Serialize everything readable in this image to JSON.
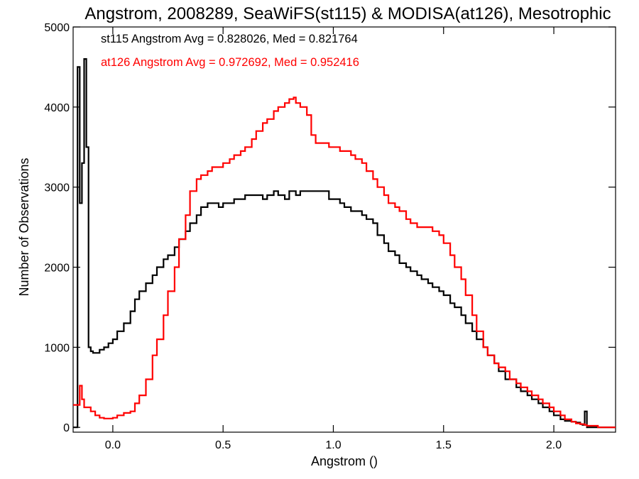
{
  "chart_data": {
    "type": "line",
    "title": "Angstrom, 2008289, SeaWiFS(st115) & MODISA(at126), Mesotrophic",
    "xlabel": "Angstrom ()",
    "ylabel": "Number of Observations",
    "xlim": [
      -0.18,
      2.28
    ],
    "ylim": [
      -60,
      5000
    ],
    "x_ticks": [
      0.0,
      0.5,
      1.0,
      1.5,
      2.0
    ],
    "x_tick_labels": [
      "0.0",
      "0.5",
      "1.0",
      "1.5",
      "2.0"
    ],
    "y_ticks": [
      0,
      1000,
      2000,
      3000,
      4000,
      5000
    ],
    "y_tick_labels": [
      "0",
      "1000",
      "2000",
      "3000",
      "4000",
      "5000"
    ],
    "grid": false,
    "step_plot": true,
    "series": [
      {
        "name": "st115",
        "color": "#000000",
        "x": [
          -0.18,
          -0.16,
          -0.15,
          -0.14,
          -0.13,
          -0.12,
          -0.11,
          -0.1,
          -0.09,
          -0.06,
          -0.04,
          -0.02,
          0.0,
          0.02,
          0.05,
          0.08,
          0.1,
          0.12,
          0.15,
          0.18,
          0.2,
          0.23,
          0.25,
          0.28,
          0.3,
          0.33,
          0.35,
          0.38,
          0.4,
          0.43,
          0.45,
          0.48,
          0.5,
          0.53,
          0.55,
          0.58,
          0.6,
          0.63,
          0.65,
          0.68,
          0.7,
          0.73,
          0.75,
          0.78,
          0.8,
          0.83,
          0.85,
          0.88,
          0.9,
          0.92,
          0.95,
          0.98,
          1.0,
          1.03,
          1.05,
          1.08,
          1.1,
          1.13,
          1.15,
          1.18,
          1.2,
          1.23,
          1.25,
          1.28,
          1.3,
          1.33,
          1.35,
          1.38,
          1.4,
          1.43,
          1.45,
          1.48,
          1.5,
          1.53,
          1.55,
          1.58,
          1.6,
          1.63,
          1.65,
          1.68,
          1.7,
          1.73,
          1.75,
          1.78,
          1.8,
          1.83,
          1.85,
          1.88,
          1.9,
          1.93,
          1.95,
          1.98,
          2.0,
          2.03,
          2.05,
          2.08,
          2.1,
          2.12,
          2.13,
          2.14,
          2.15,
          2.16,
          2.2,
          2.28
        ],
        "y": [
          0,
          4500,
          2800,
          3300,
          4600,
          3500,
          1000,
          950,
          930,
          970,
          1000,
          1050,
          1100,
          1200,
          1300,
          1450,
          1600,
          1700,
          1800,
          1900,
          2000,
          2100,
          2150,
          2250,
          2350,
          2450,
          2550,
          2650,
          2750,
          2800,
          2800,
          2750,
          2800,
          2800,
          2850,
          2850,
          2900,
          2900,
          2900,
          2850,
          2900,
          2950,
          2900,
          2850,
          2950,
          2900,
          2950,
          2950,
          2950,
          2950,
          2950,
          2850,
          2850,
          2800,
          2750,
          2700,
          2700,
          2650,
          2600,
          2550,
          2400,
          2300,
          2200,
          2150,
          2050,
          2000,
          1950,
          1900,
          1850,
          1800,
          1750,
          1700,
          1650,
          1550,
          1500,
          1400,
          1300,
          1200,
          1100,
          1000,
          900,
          800,
          700,
          600,
          600,
          500,
          450,
          400,
          350,
          300,
          250,
          200,
          150,
          100,
          80,
          70,
          60,
          40,
          30,
          200,
          0,
          0,
          0,
          0
        ],
        "legend_text": "st115 Angstrom Avg = 0.828026, Med = 0.821764"
      },
      {
        "name": "at126",
        "color": "#ff0000",
        "x": [
          -0.18,
          -0.15,
          -0.14,
          -0.13,
          -0.1,
          -0.08,
          -0.06,
          -0.04,
          -0.02,
          0.0,
          0.02,
          0.05,
          0.08,
          0.1,
          0.12,
          0.15,
          0.18,
          0.2,
          0.23,
          0.25,
          0.28,
          0.3,
          0.33,
          0.35,
          0.38,
          0.4,
          0.43,
          0.45,
          0.48,
          0.5,
          0.53,
          0.55,
          0.58,
          0.6,
          0.63,
          0.65,
          0.68,
          0.7,
          0.73,
          0.75,
          0.78,
          0.8,
          0.82,
          0.83,
          0.85,
          0.88,
          0.9,
          0.92,
          0.95,
          0.98,
          1.0,
          1.03,
          1.05,
          1.08,
          1.1,
          1.13,
          1.15,
          1.18,
          1.2,
          1.23,
          1.25,
          1.28,
          1.3,
          1.33,
          1.35,
          1.38,
          1.4,
          1.43,
          1.45,
          1.48,
          1.5,
          1.53,
          1.55,
          1.58,
          1.6,
          1.63,
          1.65,
          1.68,
          1.7,
          1.73,
          1.75,
          1.78,
          1.8,
          1.83,
          1.85,
          1.88,
          1.9,
          1.93,
          1.95,
          1.98,
          2.0,
          2.03,
          2.05,
          2.08,
          2.1,
          2.12,
          2.14,
          2.15,
          2.2,
          2.28
        ],
        "y": [
          280,
          520,
          350,
          250,
          200,
          150,
          120,
          110,
          110,
          120,
          150,
          180,
          200,
          300,
          400,
          600,
          900,
          1100,
          1400,
          1700,
          2000,
          2350,
          2650,
          2950,
          3100,
          3150,
          3200,
          3250,
          3250,
          3300,
          3350,
          3400,
          3450,
          3500,
          3600,
          3700,
          3800,
          3850,
          3950,
          4000,
          4050,
          4100,
          4120,
          4050,
          4000,
          3900,
          3650,
          3550,
          3550,
          3500,
          3500,
          3450,
          3450,
          3400,
          3350,
          3300,
          3200,
          3100,
          3000,
          2900,
          2800,
          2750,
          2700,
          2600,
          2550,
          2500,
          2500,
          2500,
          2450,
          2400,
          2300,
          2150,
          2000,
          1850,
          1650,
          1400,
          1200,
          1000,
          900,
          800,
          750,
          700,
          600,
          550,
          500,
          450,
          400,
          350,
          300,
          250,
          200,
          150,
          100,
          70,
          50,
          40,
          30,
          20,
          0,
          0
        ],
        "legend_text": "at126 Angstrom Avg = 0.972692, Med = 0.952416"
      }
    ]
  }
}
